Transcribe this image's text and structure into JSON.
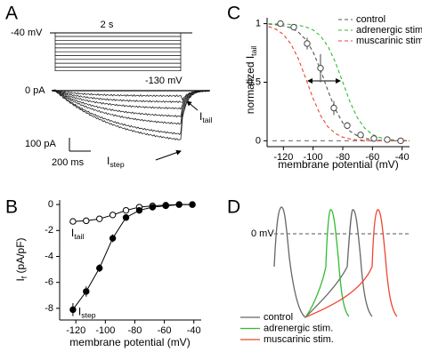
{
  "panel_a": {
    "letter": "A",
    "duration": "2 s",
    "holding": "-40 mV",
    "step_min": "-130 mV",
    "zero": "0 pA",
    "tail_label": {
      "main": "I",
      "sub": "tail"
    },
    "scale_current": "100 pA",
    "scale_time": "200 ms",
    "step_label": {
      "main": "I",
      "sub": "step"
    }
  },
  "panel_d": {
    "letter": "D",
    "zero": "0 mV",
    "legend": [
      {
        "name": "control",
        "color": "#666666"
      },
      {
        "name": "adrenergic stim.",
        "color": "#33bb33"
      },
      {
        "name": "muscarinic stim.",
        "color": "#ee4433"
      }
    ]
  },
  "chart_data": [
    {
      "type": "line",
      "panel": "B",
      "x_label": "membrane potential (mV)",
      "y_label": {
        "main": "I",
        "sub": "f",
        "rest": " (pA/pF)"
      },
      "x": [
        -122,
        -113,
        -104,
        -95,
        -86,
        -77,
        -68,
        -59,
        -50,
        -41
      ],
      "series": [
        {
          "label": {
            "main": "I",
            "sub": "tail"
          },
          "color": "#000000",
          "marker": "open",
          "values": [
            -1.3,
            -1.25,
            -1.1,
            -0.8,
            -0.45,
            -0.2,
            -0.1,
            -0.05,
            0,
            0
          ],
          "errors": [
            0.2,
            0.2,
            0.2,
            0.15,
            0.1,
            0.05,
            0.05,
            0.05,
            0.05,
            0.05
          ]
        },
        {
          "label": {
            "main": "I",
            "sub": "step"
          },
          "color": "#000000",
          "marker": "filled",
          "values": [
            -8.1,
            -6.7,
            -4.9,
            -2.6,
            -1.0,
            -0.45,
            -0.2,
            -0.1,
            0,
            0
          ],
          "errors": [
            0.5,
            0.4,
            0.3,
            0.3,
            0.15,
            0.1,
            0.05,
            0.05,
            0.05,
            0.05
          ]
        }
      ],
      "xlim": [
        -131,
        -35
      ],
      "ylim": [
        -8.9,
        0.35
      ],
      "xticks": [
        -120,
        -100,
        -80,
        -60,
        -40
      ],
      "yticks": [
        0,
        -2,
        -4,
        -6,
        -8
      ]
    },
    {
      "type": "line",
      "panel": "C",
      "x_label": "membrane potential (mV)",
      "y_label": {
        "main": "normalized I",
        "sub": "tail"
      },
      "x": [
        -130,
        -125,
        -120,
        -115,
        -110,
        -105,
        -100,
        -95,
        -90,
        -85,
        -80,
        -75,
        -70,
        -65,
        -60,
        -55,
        -50,
        -45,
        -40,
        -35
      ],
      "series": [
        {
          "name": "control",
          "color": "#555555",
          "dashed": true,
          "values": [
            0.996,
            0.991,
            0.982,
            0.964,
            0.929,
            0.865,
            0.758,
            0.606,
            0.429,
            0.269,
            0.153,
            0.081,
            0.041,
            0.021,
            0.01,
            0.005,
            0.002,
            0.001,
            0.001,
            0
          ]
        },
        {
          "name": "adrenergic stim.",
          "color": "#33bb33",
          "dashed": true,
          "values": [
            0.999,
            0.998,
            0.997,
            0.993,
            0.986,
            0.973,
            0.946,
            0.895,
            0.807,
            0.671,
            0.5,
            0.329,
            0.193,
            0.105,
            0.054,
            0.027,
            0.014,
            0.007,
            0.003,
            0.002
          ]
        },
        {
          "name": "muscarinic stim.",
          "color": "#ee4433",
          "dashed": true,
          "values": [
            0.976,
            0.953,
            0.908,
            0.828,
            0.702,
            0.536,
            0.361,
            0.217,
            0.119,
            0.062,
            0.031,
            0.016,
            0.008,
            0.004,
            0.002,
            0.001,
            0,
            0,
            0,
            0
          ]
        }
      ],
      "points": {
        "x": [
          -122,
          -113,
          -104,
          -95,
          -86,
          -77,
          -68,
          -59,
          -50,
          -41
        ],
        "values": [
          1.0,
          0.97,
          0.83,
          0.62,
          0.28,
          0.13,
          0.05,
          0.02,
          0.01,
          0
        ],
        "errors": [
          0.01,
          0.02,
          0.05,
          0.12,
          0.06,
          0.03,
          0.02,
          0.01,
          0.01,
          0.01
        ]
      },
      "baseline": 0,
      "legend": "top-right",
      "xlim": [
        -131,
        -35
      ],
      "ylim": [
        -0.05,
        1.05
      ],
      "xticks": [
        -120,
        -100,
        -80,
        -60,
        -40
      ],
      "yticks": [
        0,
        0.5,
        1
      ]
    }
  ]
}
